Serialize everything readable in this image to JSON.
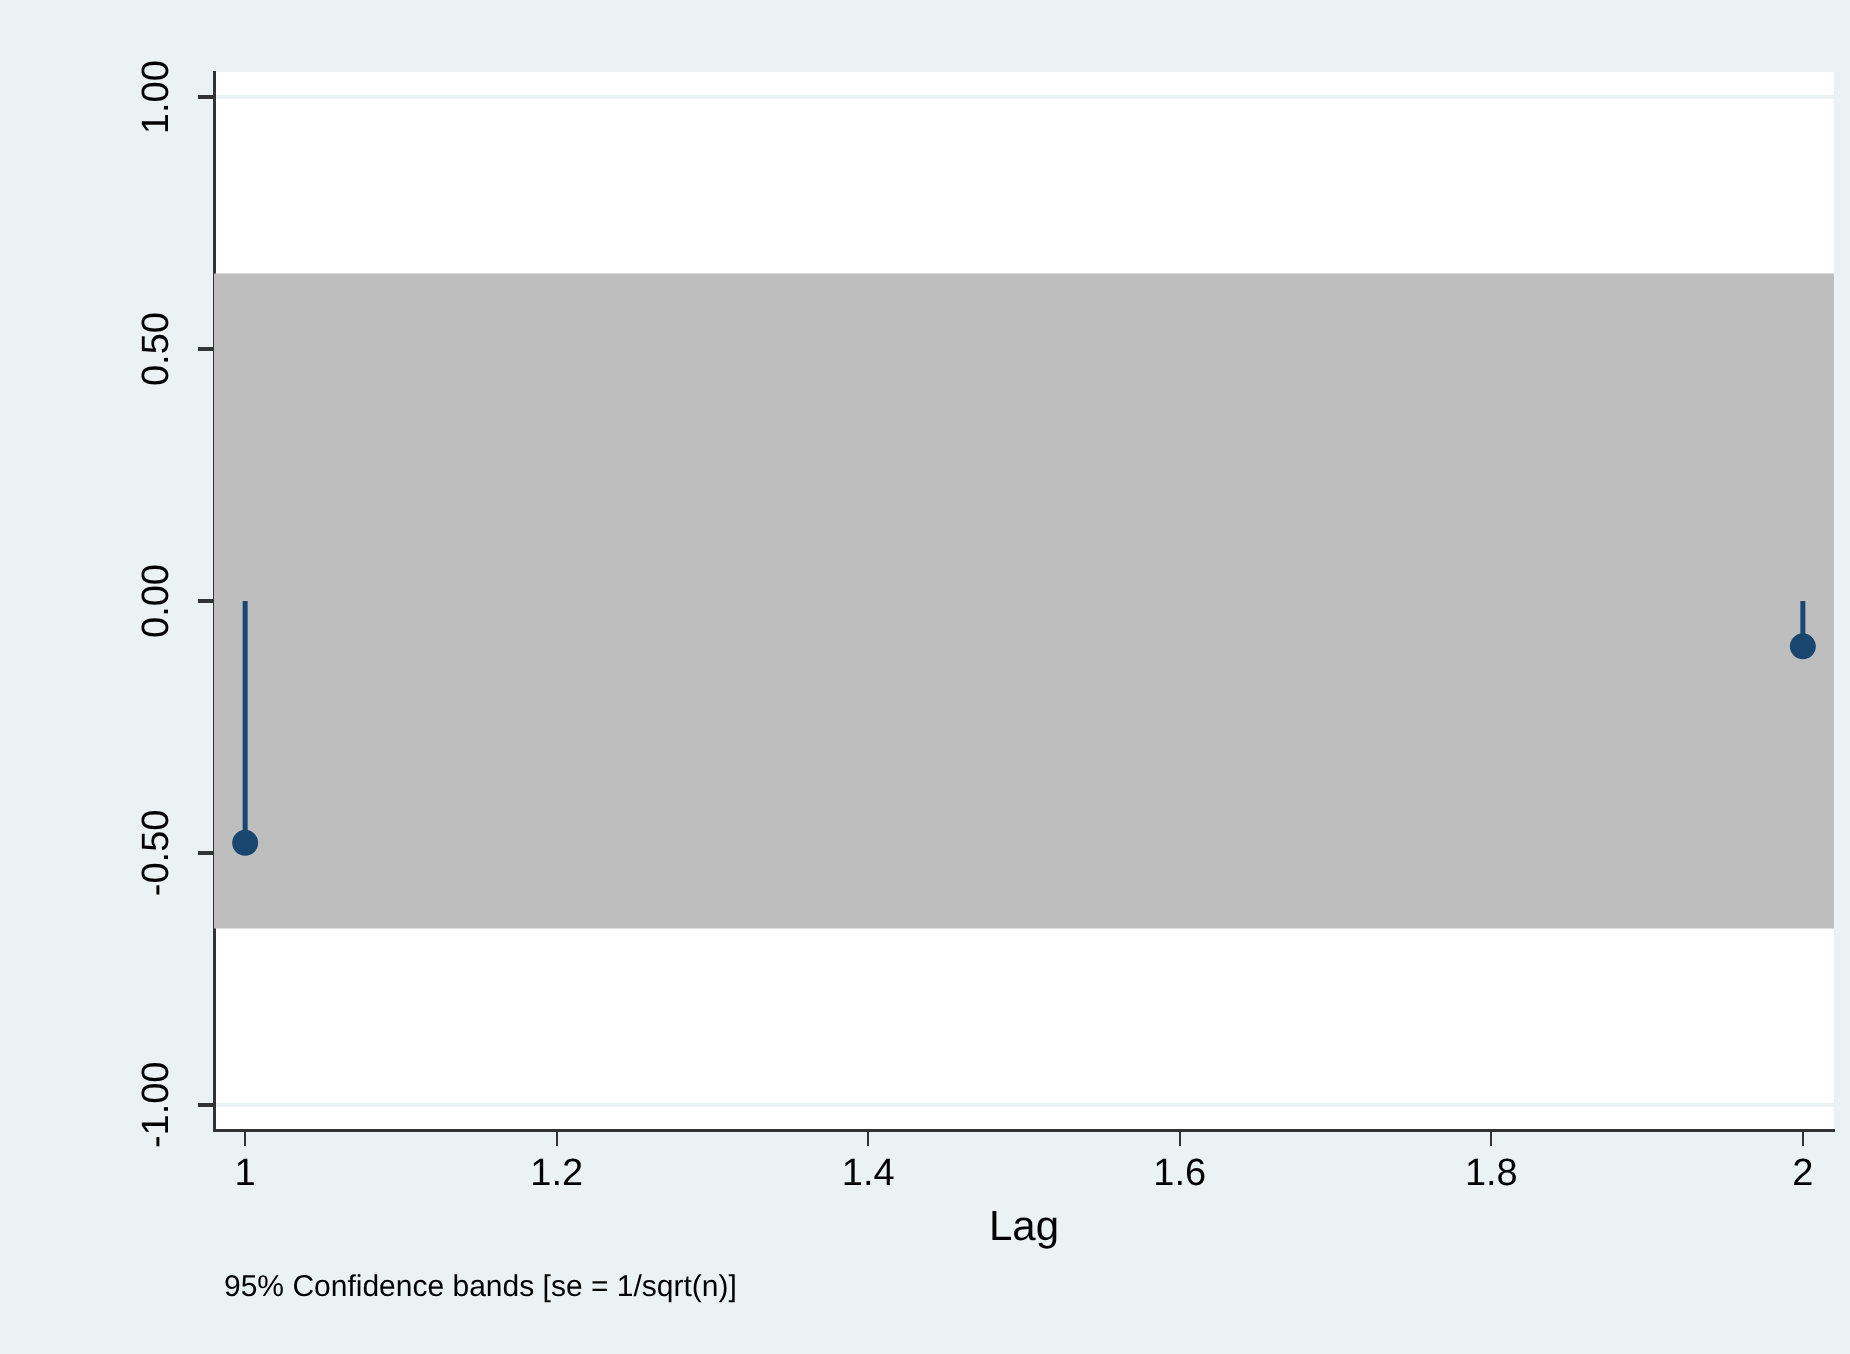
{
  "chart_data": {
    "type": "lollipop",
    "xlabel": "Lag",
    "annotations": [
      "95% Confidence bands [se = 1/sqrt(n)]"
    ],
    "x": [
      1,
      2
    ],
    "series": [
      {
        "color": "#1a476f",
        "values": [
          -0.48,
          -0.09
        ]
      }
    ],
    "bands": [
      {
        "axis": "y",
        "from": -0.65,
        "to": 0.65,
        "color": "#bebebe"
      }
    ],
    "xlim": [
      0.98,
      2.02
    ],
    "xticks": [
      1,
      1.2,
      1.4,
      1.6,
      1.8,
      2
    ],
    "ylim": [
      -1.05,
      1.05
    ],
    "yticks": [
      {
        "value": -1,
        "label": "-1.00"
      },
      {
        "value": -0.5,
        "label": "-0.50"
      },
      {
        "value": 0,
        "label": "0.00"
      },
      {
        "value": 0.5,
        "label": "0.50"
      },
      {
        "value": 1,
        "label": "1.00"
      }
    ],
    "grid": "y",
    "legend": false,
    "marker": "circle"
  }
}
